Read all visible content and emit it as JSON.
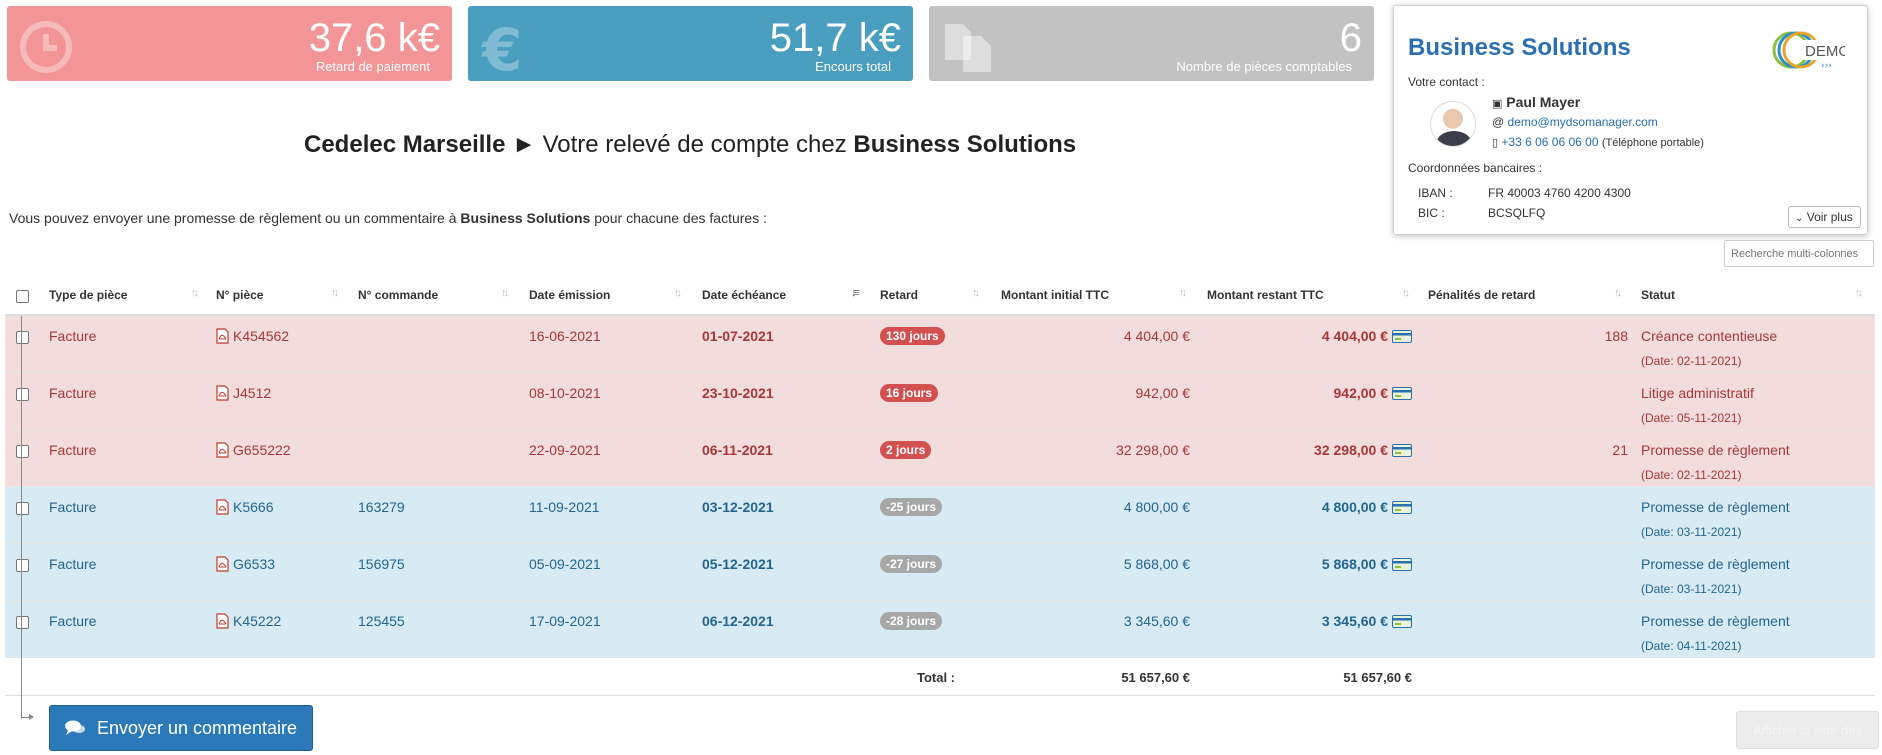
{
  "kpis": [
    {
      "value": "37,6 k€",
      "label": "Retard de paiement",
      "icon": "clock-icon",
      "color": "#f39597"
    },
    {
      "value": "51,7 k€",
      "label": "Encours total",
      "icon": "euro-icon",
      "color": "#4a9ec0"
    },
    {
      "value": "6",
      "label": "Nombre de pièces comptables",
      "icon": "documents-icon",
      "color": "#c2c2c2"
    }
  ],
  "supplier": {
    "name": "Business Solutions",
    "logo_text": "DEMO",
    "contact_label": "Votre contact :",
    "contact_name": "Paul Mayer",
    "email": "demo@mydsomanager.com",
    "phone": "+33 6 06 06 06 00",
    "phone_note": "(Téléphone portable)",
    "bank_label": "Coordonnées bancaires :",
    "iban_label": "IBAN :",
    "iban": "FR 40003 4760 4200 4300",
    "bic_label": "BIC :",
    "bic": "BCSQLFQ",
    "more_label": "Voir plus"
  },
  "title": {
    "client": "Cedelec Marseille",
    "arrow": "►",
    "middle": "Votre relevé de compte chez",
    "supplier": "Business Solutions"
  },
  "intro": {
    "before": "Vous pouvez envoyer une promesse de règlement ou un commentaire à",
    "supplier": "Business Solutions",
    "after": "pour chacune des factures :"
  },
  "search_placeholder": "Recherche multi-colonnes",
  "columns": [
    "Type de pièce",
    "N° pièce",
    "N° commande",
    "Date émission",
    "Date échéance",
    "Retard",
    "Montant initial TTC",
    "Montant restant TTC",
    "Pénalités de retard",
    "Statut"
  ],
  "rows": [
    {
      "tone": "red",
      "type": "Facture",
      "piece": "K454562",
      "commande": "",
      "emission": "16-06-2021",
      "echeance": "01-07-2021",
      "retard": "130 jours",
      "retard_kind": "late",
      "initial": "4 404,00 €",
      "restant": "4 404,00 €",
      "penalites": "188",
      "statut": "Créance contentieuse",
      "statut_date": "(Date: 02-11-2021)"
    },
    {
      "tone": "red",
      "type": "Facture",
      "piece": "J4512",
      "commande": "",
      "emission": "08-10-2021",
      "echeance": "23-10-2021",
      "retard": "16 jours",
      "retard_kind": "late",
      "initial": "942,00 €",
      "restant": "942,00 €",
      "penalites": "",
      "statut": "Litige administratif",
      "statut_date": "(Date: 05-11-2021)"
    },
    {
      "tone": "red",
      "type": "Facture",
      "piece": "G655222",
      "commande": "",
      "emission": "22-09-2021",
      "echeance": "06-11-2021",
      "retard": "2 jours",
      "retard_kind": "late",
      "initial": "32 298,00 €",
      "restant": "32 298,00 €",
      "penalites": "21",
      "statut": "Promesse de règlement",
      "statut_date": "(Date: 02-11-2021)"
    },
    {
      "tone": "blue",
      "type": "Facture",
      "piece": "K5666",
      "commande": "163279",
      "emission": "11-09-2021",
      "echeance": "03-12-2021",
      "retard": "-25 jours",
      "retard_kind": "early",
      "initial": "4 800,00 €",
      "restant": "4 800,00 €",
      "penalites": "",
      "statut": "Promesse de règlement",
      "statut_date": "(Date: 03-11-2021)"
    },
    {
      "tone": "blue",
      "type": "Facture",
      "piece": "G6533",
      "commande": "156975",
      "emission": "05-09-2021",
      "echeance": "05-12-2021",
      "retard": "-27 jours",
      "retard_kind": "early",
      "initial": "5 868,00 €",
      "restant": "5 868,00 €",
      "penalites": "",
      "statut": "Promesse de règlement",
      "statut_date": "(Date: 03-11-2021)"
    },
    {
      "tone": "blue",
      "type": "Facture",
      "piece": "K45222",
      "commande": "125455",
      "emission": "17-09-2021",
      "echeance": "06-12-2021",
      "retard": "-28 jours",
      "retard_kind": "early",
      "initial": "3 345,60 €",
      "restant": "3 345,60 €",
      "penalites": "",
      "statut": "Promesse de règlement",
      "statut_date": "(Date: 04-11-2021)"
    }
  ],
  "totals": {
    "label": "Total :",
    "initial": "51 657,60 €",
    "restant": "51 657,60 €"
  },
  "send_button": "Envoyer un commentaire",
  "history_button": "Afficher la liste des"
}
